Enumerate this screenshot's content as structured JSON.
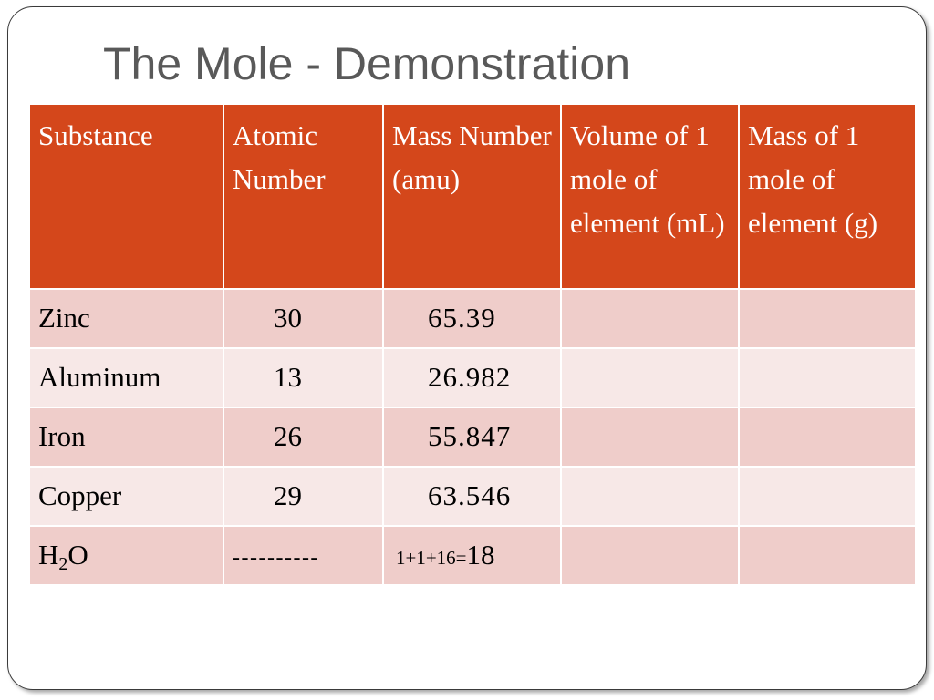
{
  "slide": {
    "title": "The Mole - Demonstration"
  },
  "table": {
    "headers": [
      "Substance",
      "Atomic Number",
      "Mass Number (amu)",
      "Volume of 1 mole of element (mL)",
      "Mass of 1 mole of element (g)"
    ],
    "rows": [
      {
        "substance": "Zinc",
        "atomic_number": "30",
        "mass_number": "65.39",
        "volume": "",
        "mass": ""
      },
      {
        "substance": "Aluminum",
        "atomic_number": "13",
        "mass_number": "26.982",
        "volume": "",
        "mass": ""
      },
      {
        "substance": "Iron",
        "atomic_number": "26",
        "mass_number": "55.847",
        "volume": "",
        "mass": ""
      },
      {
        "substance": "Copper",
        "atomic_number": "29",
        "mass_number": "63.546",
        "volume": "",
        "mass": ""
      },
      {
        "substance_prefix": "H",
        "substance_subscript": "2",
        "substance_suffix": "O",
        "atomic_number": "----------",
        "mass_number_expression": "1+1+16=",
        "mass_number_result": "18",
        "volume": "",
        "mass": ""
      }
    ]
  },
  "colors": {
    "header_background": "#d4471b",
    "row_odd": "#efcdca",
    "row_even": "#f7e8e7",
    "title_text": "#595959"
  }
}
